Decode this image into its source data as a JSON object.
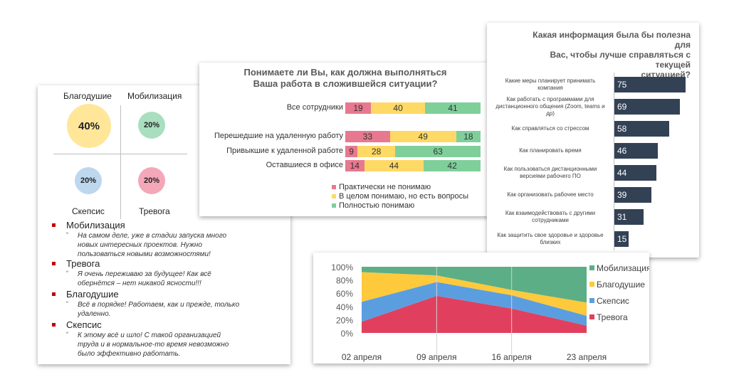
{
  "quadrant_panel": {
    "quadrants": [
      {
        "label": "Благодушие",
        "value": "40%",
        "color": "#ffe699"
      },
      {
        "label": "Мобилизация",
        "value": "20%",
        "color": "#a9dfbf"
      },
      {
        "label": "Скепсис",
        "value": "20%",
        "color": "#bdd7ee"
      },
      {
        "label": "Тревога",
        "value": "20%",
        "color": "#f4a7b9"
      }
    ],
    "quote_mark": "“",
    "quotes": [
      {
        "title": "Мобилизация",
        "lines": [
          "На самом деле, уже в стадии запуска много",
          "новых интересных проектов. Нужно",
          "пользоваться новыми возможностями!"
        ]
      },
      {
        "title": "Тревога",
        "lines": [
          "Я очень переживаю за будущее! Как всё",
          "обернётся – нет никакой ясности!!!"
        ]
      },
      {
        "title": "Благодушие",
        "lines": [
          "Всё в порядке! Работаем, как и прежде, только",
          "удаленно."
        ]
      },
      {
        "title": "Скепсис",
        "lines": [
          "К этому всё и шло! С такой организацией",
          "труда и в нормальное-то время невозможно",
          "было эффективно работать."
        ]
      }
    ]
  },
  "chart_data": [
    {
      "type": "bar",
      "orientation": "horizontal-stacked",
      "title_lines": [
        "Понимаете ли Вы, как должна выполняться",
        "Ваша работа в сложившейся ситуации?"
      ],
      "categories": [
        "Все сотрудники",
        "Перешедшие на удаленную работу",
        "Привыкшие к удаленной работе",
        "Оставшиеся в офисе"
      ],
      "series": [
        {
          "name": "Практически не понимаю",
          "color": "#e8788f",
          "values": [
            19,
            33,
            9,
            14
          ]
        },
        {
          "name": "В целом понимаю, но есть вопросы",
          "color": "#ffd966",
          "values": [
            40,
            49,
            28,
            44
          ]
        },
        {
          "name": "Полностью понимаю",
          "color": "#7fcf9b",
          "values": [
            41,
            18,
            63,
            42
          ]
        }
      ],
      "legend_position": "bottom"
    },
    {
      "type": "bar",
      "orientation": "horizontal",
      "title_lines": [
        "Какая информация была бы полезна для",
        "Вас, чтобы лучше справляться с текущей",
        "ситуацией?"
      ],
      "categories": [
        [
          "Какие меры планирует принимать",
          "компания"
        ],
        [
          "Как работать с программами для",
          "дистанционного общения (Zoom, teams и",
          "др)"
        ],
        [
          "Как справляться со стрессом"
        ],
        [
          "Как планировать время"
        ],
        [
          "Как пользоваться дистанционными",
          "версиями рабочего ПО"
        ],
        [
          "Как организовать рабочее место"
        ],
        [
          "Как взаимодействовать с другими",
          "сотрудниками"
        ],
        [
          "Как защитить свое здоровье и здоровье",
          "близких"
        ]
      ],
      "values": [
        75,
        69,
        58,
        46,
        44,
        39,
        31,
        15
      ],
      "bar_color": "#334155"
    },
    {
      "type": "area",
      "stacked": true,
      "categories": [
        "02 апреля",
        "09 апреля",
        "16 апреля",
        "23 апреля"
      ],
      "series": [
        {
          "name": "Тревога",
          "color": "#e0405e",
          "values": [
            17,
            56,
            37,
            11
          ]
        },
        {
          "name": "Скепсис",
          "color": "#5b9ee0",
          "values": [
            30,
            21,
            20,
            15
          ]
        },
        {
          "name": "Благодушие",
          "color": "#ffc93c",
          "values": [
            45,
            10,
            8,
            20
          ]
        },
        {
          "name": "Мобилизация",
          "color": "#5cae86",
          "values": [
            8,
            13,
            35,
            54
          ]
        }
      ],
      "legend_order": [
        "Мобилизация",
        "Благодушие",
        "Скепсис",
        "Тревога"
      ],
      "y_ticks": [
        "0%",
        "20%",
        "40%",
        "60%",
        "80%",
        "100%"
      ],
      "ylim": [
        0,
        100
      ],
      "legend_position": "right"
    }
  ]
}
